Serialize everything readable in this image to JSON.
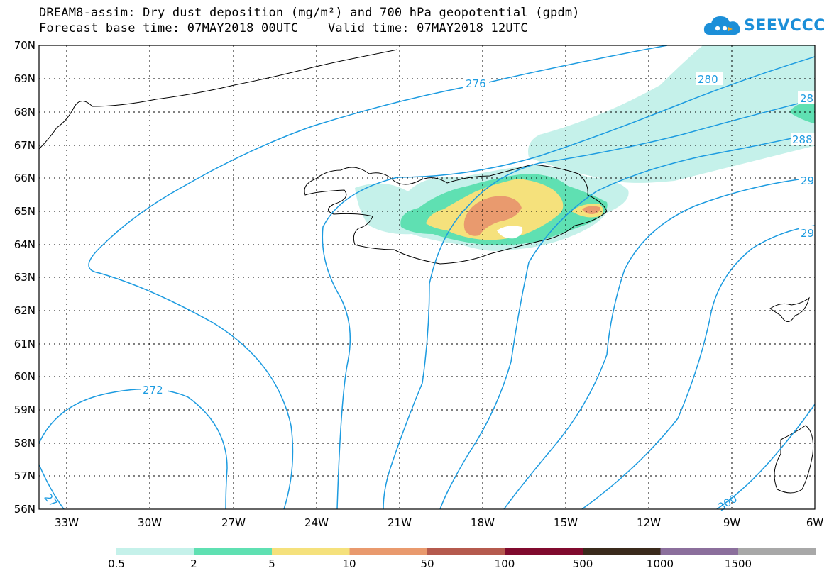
{
  "title": {
    "line1": "DREAM8-assim: Dry dust deposition (mg/m²) and 700 hPa geopotential (gpdm)",
    "line2": "Forecast base time: 07MAY2018 00UTC    Valid time: 07MAY2018 12UTC"
  },
  "logo": {
    "text": "SEEVCCC",
    "icon": "cloud-icon"
  },
  "map": {
    "lat_labels": [
      "70N",
      "69N",
      "68N",
      "67N",
      "66N",
      "65N",
      "64N",
      "63N",
      "62N",
      "61N",
      "60N",
      "59N",
      "58N",
      "57N",
      "56N"
    ],
    "lon_labels": [
      "33W",
      "30W",
      "27W",
      "24W",
      "21W",
      "18W",
      "15W",
      "12W",
      "9W",
      "6W"
    ],
    "contour_labels": [
      "276",
      "280",
      "28",
      "288",
      "29",
      "29",
      "272",
      "27",
      "300"
    ]
  },
  "colorbar": {
    "labels": [
      "0.5",
      "2",
      "5",
      "10",
      "50",
      "100",
      "500",
      "1000",
      "1500"
    ],
    "colors": [
      "#c5f1ea",
      "#5fe0b2",
      "#f5e17c",
      "#e99a6e",
      "#b55a4e",
      "#800a2e",
      "#3a2a1c",
      "#8b6f9c",
      "#a8a8a8"
    ]
  },
  "colors": {
    "contour": "#1c9be0",
    "frame": "#000000"
  }
}
